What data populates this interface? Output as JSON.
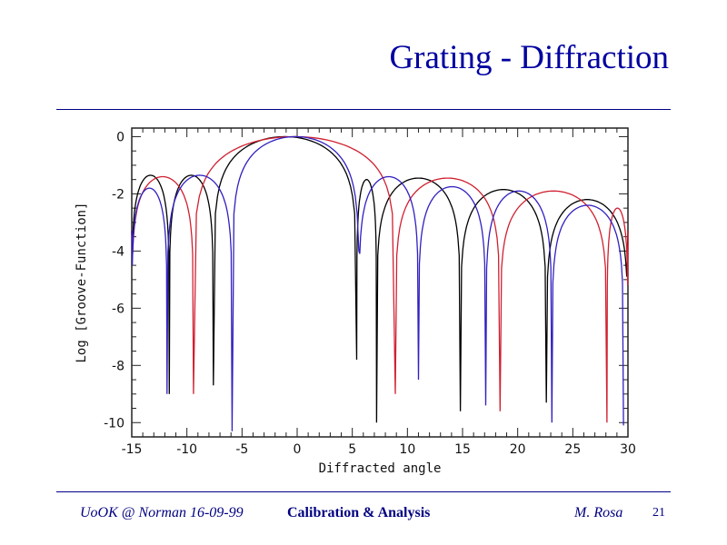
{
  "slide": {
    "title": "Grating - Diffraction",
    "footer_left": "UoOK @ Norman  16-09-99",
    "footer_center": "Calibration & Analysis",
    "footer_author": "M. Rosa",
    "page_number": "21"
  },
  "chart_data": {
    "type": "line",
    "title": "",
    "xlabel": "Diffracted angle",
    "ylabel": "Log [Groove-Function]",
    "xlim": [
      -15,
      30
    ],
    "ylim": [
      -10.5,
      0.3
    ],
    "xticks": [
      -15,
      -10,
      -5,
      0,
      5,
      10,
      15,
      20,
      25,
      30
    ],
    "yticks": [
      0,
      -2,
      -4,
      -6,
      -8,
      -10
    ],
    "grid": false,
    "series": [
      {
        "color": "#000000",
        "lobes": [
          {
            "from": -15,
            "to": -11.6,
            "peak": -1.35
          },
          {
            "from": -11.6,
            "to": -7.6,
            "peak": -1.35
          },
          {
            "from": -7.6,
            "to": 5.4,
            "peak": 0
          },
          {
            "from": 5.4,
            "to": 7.2,
            "peak": -1.5
          },
          {
            "from": 7.2,
            "to": 14.8,
            "peak": -1.45
          },
          {
            "from": 14.8,
            "to": 22.6,
            "peak": -1.85
          },
          {
            "from": 22.6,
            "to": 30,
            "peak": -2.2
          }
        ],
        "zeros": [
          {
            "x": -11.6,
            "y": -9.0
          },
          {
            "x": -7.6,
            "y": -8.7
          },
          {
            "x": 5.4,
            "y": -7.8
          },
          {
            "x": 7.2,
            "y": -10.0
          },
          {
            "x": 14.8,
            "y": -9.6
          },
          {
            "x": 22.6,
            "y": -9.3
          }
        ]
      },
      {
        "color": "#d02030",
        "lobes": [
          {
            "from": -15,
            "to": -9.4,
            "peak": -1.4
          },
          {
            "from": -9.4,
            "to": 8.9,
            "peak": 0
          },
          {
            "from": 8.9,
            "to": 18.4,
            "peak": -1.45
          },
          {
            "from": 18.4,
            "to": 28.1,
            "peak": -1.9
          },
          {
            "from": 28.1,
            "to": 30,
            "peak": -2.5
          }
        ],
        "zeros": [
          {
            "x": -9.4,
            "y": -9.0
          },
          {
            "x": 8.9,
            "y": -9.0
          },
          {
            "x": 18.4,
            "y": -9.6
          },
          {
            "x": 28.1,
            "y": -10.0
          }
        ]
      },
      {
        "color": "#3020c0",
        "lobes": [
          {
            "from": -15,
            "to": -11.8,
            "peak": -1.8
          },
          {
            "from": -11.8,
            "to": -5.9,
            "peak": -1.35
          },
          {
            "from": -5.9,
            "to": 5.6,
            "peak": 0
          },
          {
            "from": 5.6,
            "to": 11.0,
            "peak": -1.4
          },
          {
            "from": 11.0,
            "to": 17.1,
            "peak": -1.75
          },
          {
            "from": 17.1,
            "to": 23.1,
            "peak": -1.9
          },
          {
            "from": 23.1,
            "to": 29.6,
            "peak": -2.4
          }
        ],
        "zeros": [
          {
            "x": -11.8,
            "y": -9.0
          },
          {
            "x": -5.9,
            "y": -10.3
          },
          {
            "x": 5.6,
            "y": -4.0
          },
          {
            "x": 11.0,
            "y": -8.5
          },
          {
            "x": 17.1,
            "y": -9.4
          },
          {
            "x": 23.1,
            "y": -10.0
          },
          {
            "x": 29.6,
            "y": -10.1
          }
        ]
      }
    ]
  }
}
